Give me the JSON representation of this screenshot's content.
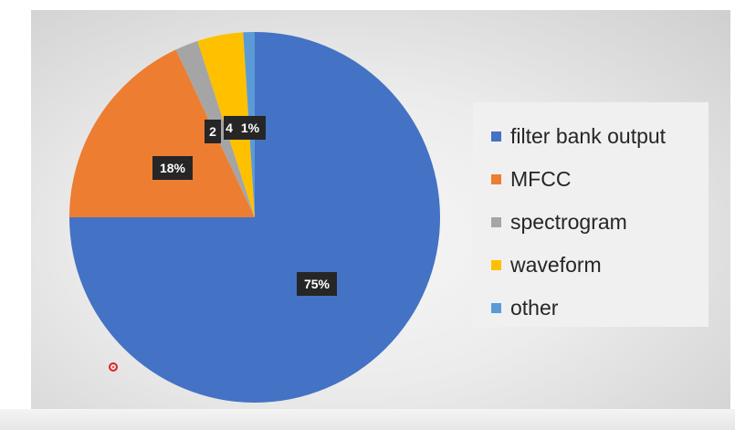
{
  "chart_data": {
    "type": "pie",
    "title": "",
    "start_angle_deg": 0,
    "direction": "clockwise",
    "legend_position": "right",
    "slices": [
      {
        "label": "filter bank output",
        "value": 75,
        "display": "75%",
        "color": "#4472c4"
      },
      {
        "label": "MFCC",
        "value": 18,
        "display": "18%",
        "color": "#ed7d31"
      },
      {
        "label": "spectrogram",
        "value": 2,
        "display": "2",
        "color": "#a5a5a5"
      },
      {
        "label": "waveform",
        "value": 4,
        "display": "4",
        "color": "#ffc000"
      },
      {
        "label": "other",
        "value": 1,
        "display": "1%",
        "color": "#5b9bd5"
      }
    ]
  },
  "colors": {
    "label_box": "#262626",
    "label_text": "#ffffff",
    "legend_text": "#262626"
  }
}
